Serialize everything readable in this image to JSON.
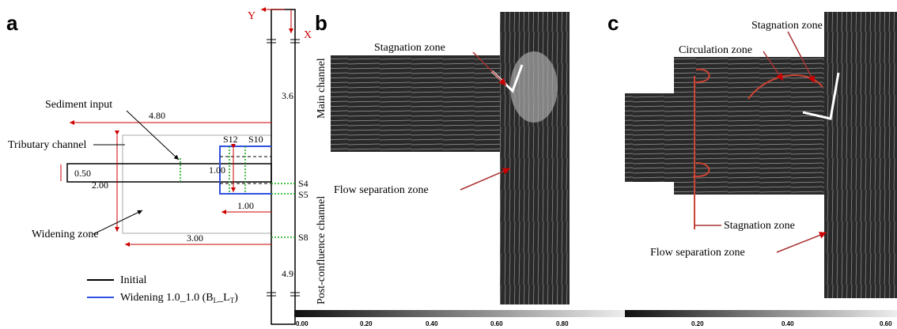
{
  "panel_a": {
    "label": "a",
    "axis_y": "Y",
    "axis_x": "X",
    "dim_main_upper": "3.6",
    "dim_sediment": "4.80",
    "sediment_input": "Sediment input",
    "tributary_channel": "Tributary channel",
    "section_s12": "S12",
    "section_s10": "S10",
    "dim_trib_width": "0.50",
    "dim_widen_width": "1.00",
    "dim_total_width": "2.00",
    "section_s4": "S4",
    "section_s5": "S5",
    "dim_widen_length": "1.00",
    "widening_zone": "Widening zone",
    "section_s8": "S8",
    "dim_length": "3.00",
    "dim_main_lower": "4.9",
    "legend": {
      "initial": "Initial",
      "widening": {
        "text": "Widening 1.0_1.0 (B",
        "sub1": "L",
        "mid": "_L",
        "sub2": "T",
        "end": ")"
      }
    }
  },
  "panel_b": {
    "label": "b",
    "stagnation_zone": "Stagnation zone",
    "main_channel": "Main channel",
    "flow_separation_zone": "Flow separation zone",
    "post_confluence_channel": "Post-confluence channel",
    "scale_ticks": [
      "0.00",
      "0.20",
      "0.40",
      "0.60",
      "0.80"
    ]
  },
  "panel_c": {
    "label": "c",
    "stagnation_zone_top": "Stagnation  zone",
    "circulation_zone": "Circulation zone",
    "stagnation_zone_bottom": "Stagnation  zone",
    "flow_separation_zone": "Flow separation zone",
    "scale_ticks": [
      "0.20",
      "0.40",
      "0.60"
    ]
  }
}
